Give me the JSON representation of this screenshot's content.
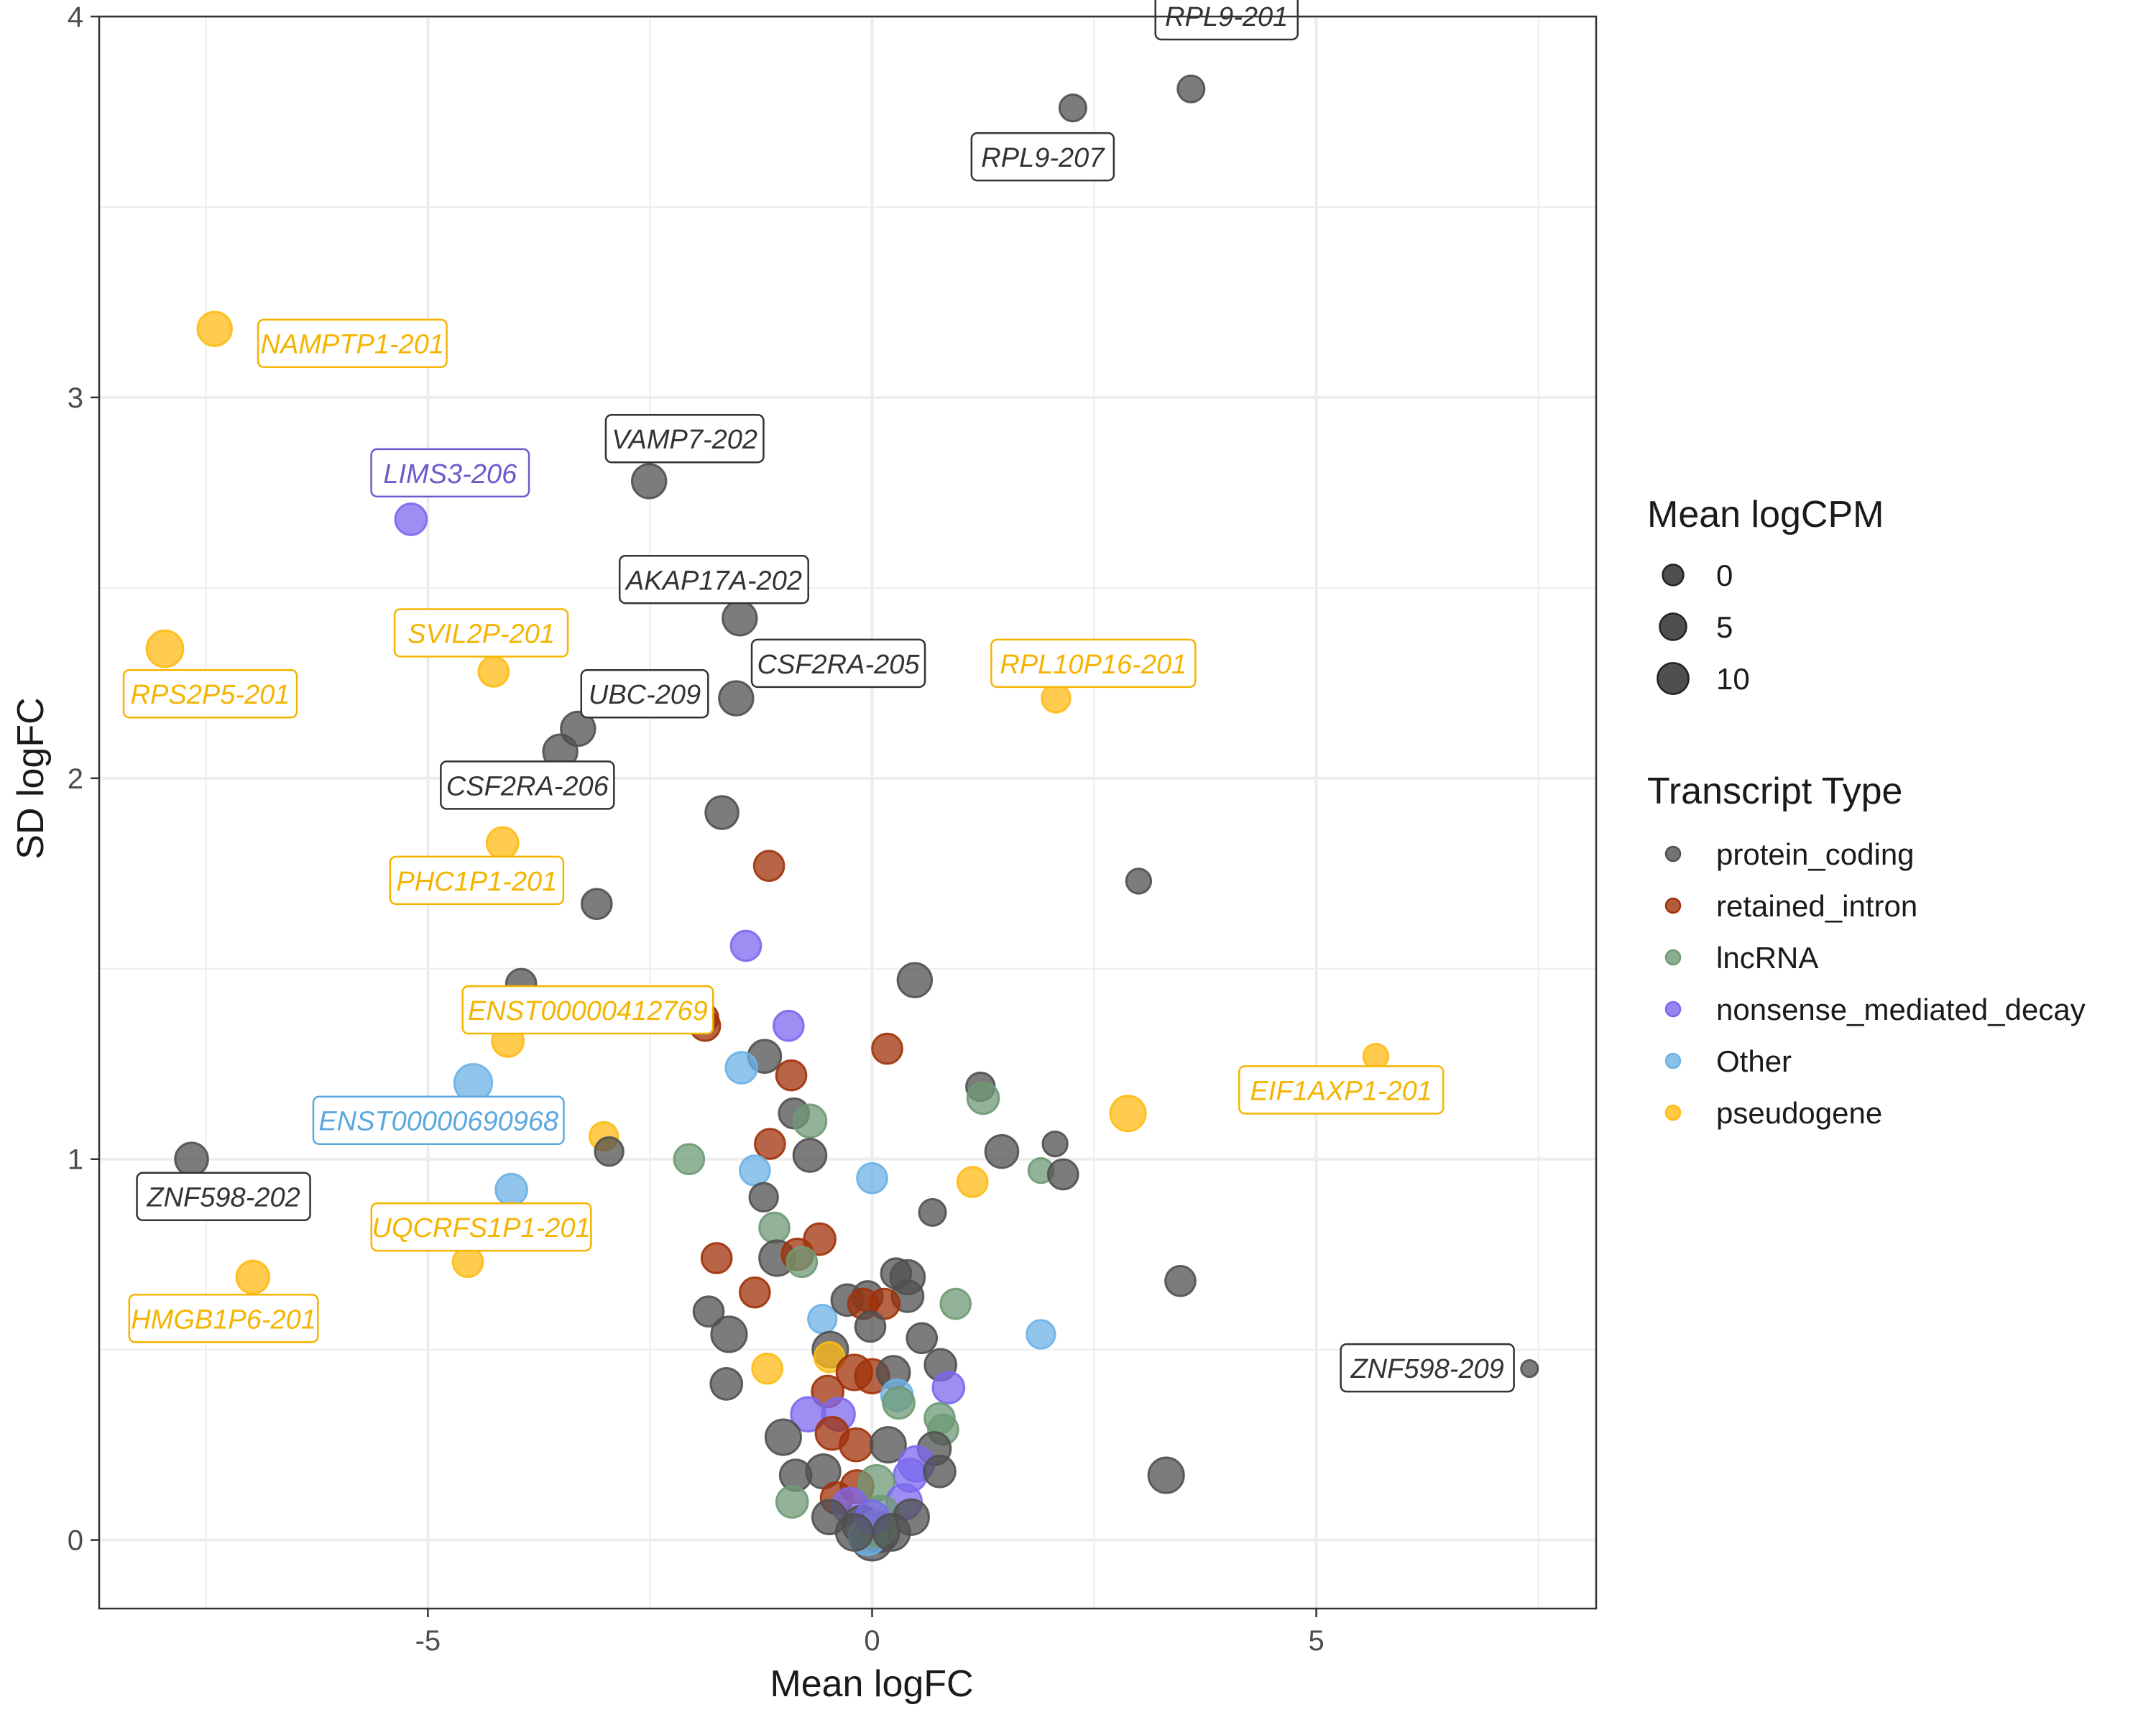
{
  "chart_data": {
    "type": "scatter",
    "title": "",
    "xlabel": "Mean logFC",
    "ylabel": "SD logFC",
    "xlim": [
      -8.7,
      8.15
    ],
    "ylim": [
      -0.18,
      4.0
    ],
    "x_ticks": [
      -5,
      0,
      5
    ],
    "x_tick_labels": [
      "-5",
      "0",
      "5"
    ],
    "y_ticks": [
      0,
      1,
      2,
      3,
      4
    ],
    "y_tick_labels": [
      "0",
      "1",
      "2",
      "3",
      "4"
    ],
    "grid": true,
    "legend_position": "right",
    "size_legend": {
      "title": "Mean logCPM",
      "entries": [
        {
          "label": "0",
          "value": 0
        },
        {
          "label": "5",
          "value": 5
        },
        {
          "label": "10",
          "value": 10
        }
      ]
    },
    "color_legend": {
      "title": "Transcript Type",
      "entries": [
        {
          "label": "protein_coding",
          "key": "protein_coding",
          "color": "#505050"
        },
        {
          "label": "retained_intron",
          "key": "retained_intron",
          "color": "#A0320A"
        },
        {
          "label": "lncRNA",
          "key": "lncRNA",
          "color": "#6E9A74"
        },
        {
          "label": "nonsense_mediated_decay",
          "key": "nonsense_mediated_decay",
          "color": "#7B68EE"
        },
        {
          "label": "Other",
          "key": "Other",
          "color": "#6DB1E6"
        },
        {
          "label": "pseudogene",
          "key": "pseudogene",
          "color": "#FFBB14"
        }
      ]
    },
    "label_colors": {
      "protein_coding": "#333333",
      "nonsense_mediated_decay": "#6A5ACD",
      "Other": "#5BA8DD",
      "pseudogene": "#F5B400"
    },
    "labeled_points": [
      {
        "label": "RPL9-201",
        "x": 3.59,
        "y": 3.81,
        "logCPM": 0,
        "type": "protein_coding",
        "lx": 3.99,
        "ly": 4.0
      },
      {
        "label": "RPL9-207",
        "x": 2.26,
        "y": 3.76,
        "logCPM": 0,
        "type": "protein_coding",
        "lx": 1.92,
        "ly": 3.63
      },
      {
        "label": "NAMPTP1-201",
        "x": -7.4,
        "y": 3.18,
        "logCPM": 5,
        "type": "pseudogene",
        "lx": -5.85,
        "ly": 3.14
      },
      {
        "label": "VAMP7-202",
        "x": -2.51,
        "y": 2.78,
        "logCPM": 5,
        "type": "protein_coding",
        "lx": -2.11,
        "ly": 2.89
      },
      {
        "label": "LIMS3-206",
        "x": -5.19,
        "y": 2.68,
        "logCPM": 3,
        "type": "nonsense_mediated_decay",
        "lx": -4.75,
        "ly": 2.8
      },
      {
        "label": "AKAP17A-202",
        "x": -1.49,
        "y": 2.42,
        "logCPM": 5,
        "type": "protein_coding",
        "lx": -1.78,
        "ly": 2.52
      },
      {
        "label": "RPS2P5-201",
        "x": -7.96,
        "y": 2.34,
        "logCPM": 7,
        "type": "pseudogene",
        "lx": -7.45,
        "ly": 2.22
      },
      {
        "label": "SVIL2P-201",
        "x": -4.26,
        "y": 2.28,
        "logCPM": 2,
        "type": "pseudogene",
        "lx": -4.4,
        "ly": 2.38
      },
      {
        "label": "CSF2RA-205",
        "x": -1.53,
        "y": 2.21,
        "logCPM": 5,
        "type": "protein_coding",
        "lx": -0.38,
        "ly": 2.3
      },
      {
        "label": "UBC-209",
        "x": -3.31,
        "y": 2.13,
        "logCPM": 5,
        "type": "protein_coding",
        "lx": -2.56,
        "ly": 2.22
      },
      {
        "label": "RPL10P16-201",
        "x": 2.07,
        "y": 2.21,
        "logCPM": 1,
        "type": "pseudogene",
        "lx": 2.49,
        "ly": 2.3
      },
      {
        "label": "CSF2RA-206",
        "x": -3.51,
        "y": 2.07,
        "logCPM": 5,
        "type": "protein_coding",
        "lx": -3.88,
        "ly": 1.98
      },
      {
        "label": "PHC1P1-201",
        "x": -4.16,
        "y": 1.83,
        "logCPM": 3,
        "type": "pseudogene",
        "lx": -4.45,
        "ly": 1.73
      },
      {
        "label": "ENST00000412769",
        "x": -4.1,
        "y": 1.31,
        "logCPM": 3,
        "type": "pseudogene",
        "lx": -3.2,
        "ly": 1.39
      },
      {
        "label": "EIF1AXP1-201",
        "x": 5.67,
        "y": 1.27,
        "logCPM": -1,
        "type": "pseudogene",
        "lx": 5.28,
        "ly": 1.18
      },
      {
        "label": "ENST00000690968",
        "x": -4.49,
        "y": 1.2,
        "logCPM": 8,
        "type": "Other",
        "lx": -4.88,
        "ly": 1.1
      },
      {
        "label": "ZNF598-202",
        "x": -7.66,
        "y": 1.0,
        "logCPM": 4,
        "type": "protein_coding",
        "lx": -7.3,
        "ly": 0.9
      },
      {
        "label": "UQCRFS1P1-201",
        "x": -4.55,
        "y": 0.73,
        "logCPM": 2,
        "type": "pseudogene",
        "lx": -4.4,
        "ly": 0.82
      },
      {
        "label": "HMGB1P6-201",
        "x": -6.97,
        "y": 0.69,
        "logCPM": 4,
        "type": "pseudogene",
        "lx": -7.3,
        "ly": 0.58
      },
      {
        "label": "ZNF598-209",
        "x": 7.4,
        "y": 0.45,
        "logCPM": -4,
        "type": "protein_coding",
        "lx": 6.25,
        "ly": 0.45
      }
    ],
    "points": [
      {
        "x": -1.69,
        "y": 1.91,
        "logCPM": 4,
        "type": "protein_coding"
      },
      {
        "x": -1.16,
        "y": 1.77,
        "logCPM": 2,
        "type": "retained_intron"
      },
      {
        "x": 3.0,
        "y": 1.73,
        "logCPM": -1,
        "type": "protein_coding"
      },
      {
        "x": -3.1,
        "y": 1.67,
        "logCPM": 2,
        "type": "protein_coding"
      },
      {
        "x": -1.42,
        "y": 1.56,
        "logCPM": 2,
        "type": "nonsense_mediated_decay"
      },
      {
        "x": 0.48,
        "y": 1.47,
        "logCPM": 5,
        "type": "protein_coding"
      },
      {
        "x": -3.95,
        "y": 1.46,
        "logCPM": 2,
        "type": "protein_coding"
      },
      {
        "x": -1.9,
        "y": 1.37,
        "logCPM": 2,
        "type": "retained_intron"
      },
      {
        "x": -1.88,
        "y": 1.35,
        "logCPM": 2,
        "type": "retained_intron"
      },
      {
        "x": -0.94,
        "y": 1.35,
        "logCPM": 2,
        "type": "nonsense_mediated_decay"
      },
      {
        "x": 0.17,
        "y": 1.29,
        "logCPM": 2,
        "type": "retained_intron"
      },
      {
        "x": -1.21,
        "y": 1.27,
        "logCPM": 4,
        "type": "protein_coding"
      },
      {
        "x": -1.47,
        "y": 1.24,
        "logCPM": 3,
        "type": "Other"
      },
      {
        "x": -0.91,
        "y": 1.22,
        "logCPM": 2,
        "type": "retained_intron"
      },
      {
        "x": 1.22,
        "y": 1.19,
        "logCPM": 1,
        "type": "protein_coding"
      },
      {
        "x": 1.25,
        "y": 1.16,
        "logCPM": 3,
        "type": "lncRNA"
      },
      {
        "x": 2.88,
        "y": 1.12,
        "logCPM": 6,
        "type": "pseudogene"
      },
      {
        "x": -0.88,
        "y": 1.12,
        "logCPM": 2,
        "type": "protein_coding"
      },
      {
        "x": -0.7,
        "y": 1.1,
        "logCPM": 4,
        "type": "lncRNA"
      },
      {
        "x": -3.02,
        "y": 1.06,
        "logCPM": 1,
        "type": "pseudogene"
      },
      {
        "x": -2.96,
        "y": 1.02,
        "logCPM": 1,
        "type": "protein_coding"
      },
      {
        "x": -1.15,
        "y": 1.04,
        "logCPM": 2,
        "type": "retained_intron"
      },
      {
        "x": -0.7,
        "y": 1.01,
        "logCPM": 4,
        "type": "protein_coding"
      },
      {
        "x": -2.06,
        "y": 1.0,
        "logCPM": 2,
        "type": "lncRNA"
      },
      {
        "x": 1.46,
        "y": 1.02,
        "logCPM": 4,
        "type": "protein_coding"
      },
      {
        "x": 2.06,
        "y": 1.04,
        "logCPM": -1,
        "type": "protein_coding"
      },
      {
        "x": 1.9,
        "y": 0.97,
        "logCPM": -1,
        "type": "lncRNA"
      },
      {
        "x": 2.15,
        "y": 0.96,
        "logCPM": 2,
        "type": "protein_coding"
      },
      {
        "x": -1.32,
        "y": 0.97,
        "logCPM": 2,
        "type": "Other"
      },
      {
        "x": 0.0,
        "y": 0.95,
        "logCPM": 2,
        "type": "Other"
      },
      {
        "x": 1.13,
        "y": 0.94,
        "logCPM": 2,
        "type": "pseudogene"
      },
      {
        "x": -4.06,
        "y": 0.92,
        "logCPM": 3,
        "type": "Other"
      },
      {
        "x": -1.22,
        "y": 0.9,
        "logCPM": 1,
        "type": "protein_coding"
      },
      {
        "x": 0.68,
        "y": 0.86,
        "logCPM": 0,
        "type": "protein_coding"
      },
      {
        "x": -1.1,
        "y": 0.82,
        "logCPM": 2,
        "type": "lncRNA"
      },
      {
        "x": -1.75,
        "y": 0.74,
        "logCPM": 2,
        "type": "retained_intron"
      },
      {
        "x": -1.07,
        "y": 0.74,
        "logCPM": 6,
        "type": "protein_coding"
      },
      {
        "x": -0.84,
        "y": 0.75,
        "logCPM": 3,
        "type": "retained_intron"
      },
      {
        "x": -0.59,
        "y": 0.79,
        "logCPM": 3,
        "type": "retained_intron"
      },
      {
        "x": -0.79,
        "y": 0.73,
        "logCPM": 2,
        "type": "lncRNA"
      },
      {
        "x": 3.47,
        "y": 0.68,
        "logCPM": 2,
        "type": "protein_coding"
      },
      {
        "x": -1.32,
        "y": 0.65,
        "logCPM": 2,
        "type": "retained_intron"
      },
      {
        "x": -1.84,
        "y": 0.6,
        "logCPM": 2,
        "type": "protein_coding"
      },
      {
        "x": -1.61,
        "y": 0.54,
        "logCPM": 6,
        "type": "protein_coding"
      },
      {
        "x": -0.56,
        "y": 0.58,
        "logCPM": 1,
        "type": "Other"
      },
      {
        "x": 0.94,
        "y": 0.62,
        "logCPM": 2,
        "type": "lncRNA"
      },
      {
        "x": 1.9,
        "y": 0.54,
        "logCPM": 1,
        "type": "Other"
      },
      {
        "x": -1.18,
        "y": 0.45,
        "logCPM": 2,
        "type": "pseudogene"
      },
      {
        "x": -1.64,
        "y": 0.41,
        "logCPM": 3,
        "type": "protein_coding"
      },
      {
        "x": 3.31,
        "y": 0.17,
        "logCPM": 6,
        "type": "protein_coding"
      },
      {
        "x": -0.28,
        "y": 0.63,
        "logCPM": 3,
        "type": "protein_coding"
      },
      {
        "x": -0.05,
        "y": 0.64,
        "logCPM": 2,
        "type": "protein_coding"
      },
      {
        "x": 0.27,
        "y": 0.7,
        "logCPM": 2,
        "type": "protein_coding"
      },
      {
        "x": 0.4,
        "y": 0.69,
        "logCPM": 5,
        "type": "protein_coding"
      },
      {
        "x": 0.4,
        "y": 0.64,
        "logCPM": 3,
        "type": "protein_coding"
      },
      {
        "x": 0.14,
        "y": 0.62,
        "logCPM": 2,
        "type": "retained_intron"
      },
      {
        "x": -0.1,
        "y": 0.62,
        "logCPM": 2,
        "type": "retained_intron"
      },
      {
        "x": -0.02,
        "y": 0.56,
        "logCPM": 2,
        "type": "protein_coding"
      },
      {
        "x": 0.56,
        "y": 0.53,
        "logCPM": 2,
        "type": "protein_coding"
      },
      {
        "x": -0.47,
        "y": 0.5,
        "logCPM": 6,
        "type": "protein_coding"
      },
      {
        "x": -0.48,
        "y": 0.48,
        "logCPM": 2,
        "type": "pseudogene"
      },
      {
        "x": 0.77,
        "y": 0.46,
        "logCPM": 3,
        "type": "protein_coding"
      },
      {
        "x": -0.2,
        "y": 0.44,
        "logCPM": 6,
        "type": "retained_intron"
      },
      {
        "x": 0.0,
        "y": 0.43,
        "logCPM": 5,
        "type": "retained_intron"
      },
      {
        "x": 0.24,
        "y": 0.44,
        "logCPM": 4,
        "type": "protein_coding"
      },
      {
        "x": 0.86,
        "y": 0.4,
        "logCPM": 3,
        "type": "nonsense_mediated_decay"
      },
      {
        "x": -0.5,
        "y": 0.39,
        "logCPM": 3,
        "type": "retained_intron"
      },
      {
        "x": 0.28,
        "y": 0.38,
        "logCPM": 3,
        "type": "Other"
      },
      {
        "x": 0.3,
        "y": 0.36,
        "logCPM": 3,
        "type": "lncRNA"
      },
      {
        "x": -0.72,
        "y": 0.33,
        "logCPM": 5,
        "type": "nonsense_mediated_decay"
      },
      {
        "x": -0.38,
        "y": 0.33,
        "logCPM": 4,
        "type": "nonsense_mediated_decay"
      },
      {
        "x": 0.76,
        "y": 0.32,
        "logCPM": 2,
        "type": "lncRNA"
      },
      {
        "x": 0.8,
        "y": 0.29,
        "logCPM": 2,
        "type": "lncRNA"
      },
      {
        "x": -1.0,
        "y": 0.27,
        "logCPM": 6,
        "type": "protein_coding"
      },
      {
        "x": -0.45,
        "y": 0.28,
        "logCPM": 4,
        "type": "retained_intron"
      },
      {
        "x": -0.18,
        "y": 0.25,
        "logCPM": 4,
        "type": "retained_intron"
      },
      {
        "x": 0.18,
        "y": 0.25,
        "logCPM": 6,
        "type": "protein_coding"
      },
      {
        "x": 0.7,
        "y": 0.24,
        "logCPM": 4,
        "type": "protein_coding"
      },
      {
        "x": 0.5,
        "y": 0.2,
        "logCPM": 6,
        "type": "nonsense_mediated_decay"
      },
      {
        "x": 0.43,
        "y": 0.17,
        "logCPM": 4,
        "type": "nonsense_mediated_decay"
      },
      {
        "x": -0.86,
        "y": 0.17,
        "logCPM": 3,
        "type": "protein_coding"
      },
      {
        "x": 0.76,
        "y": 0.18,
        "logCPM": 3,
        "type": "protein_coding"
      },
      {
        "x": -0.55,
        "y": 0.18,
        "logCPM": 5,
        "type": "protein_coding"
      },
      {
        "x": -0.17,
        "y": 0.14,
        "logCPM": 4,
        "type": "retained_intron"
      },
      {
        "x": 0.05,
        "y": 0.15,
        "logCPM": 6,
        "type": "lncRNA"
      },
      {
        "x": -0.9,
        "y": 0.1,
        "logCPM": 3,
        "type": "lncRNA"
      },
      {
        "x": -0.4,
        "y": 0.11,
        "logCPM": 3,
        "type": "retained_intron"
      },
      {
        "x": 0.36,
        "y": 0.1,
        "logCPM": 6,
        "type": "nonsense_mediated_decay"
      },
      {
        "x": -0.25,
        "y": 0.09,
        "logCPM": 6,
        "type": "nonsense_mediated_decay"
      },
      {
        "x": 0.1,
        "y": 0.07,
        "logCPM": 6,
        "type": "lncRNA"
      },
      {
        "x": -0.48,
        "y": 0.06,
        "logCPM": 5,
        "type": "protein_coding"
      },
      {
        "x": 0.44,
        "y": 0.06,
        "logCPM": 6,
        "type": "protein_coding"
      },
      {
        "x": -0.12,
        "y": 0.04,
        "logCPM": 8,
        "type": "protein_coding"
      },
      {
        "x": 0.08,
        "y": 0.02,
        "logCPM": 10,
        "type": "protein_coding"
      },
      {
        "x": 0.0,
        "y": 0.0,
        "logCPM": 11,
        "type": "protein_coding"
      },
      {
        "x": -0.05,
        "y": 0.01,
        "logCPM": 8,
        "type": "Other"
      },
      {
        "x": 0.06,
        "y": 0.03,
        "logCPM": 7,
        "type": "lncRNA"
      },
      {
        "x": 0.0,
        "y": 0.06,
        "logCPM": 4,
        "type": "nonsense_mediated_decay"
      },
      {
        "x": -0.2,
        "y": 0.02,
        "logCPM": 7,
        "type": "protein_coding"
      },
      {
        "x": 0.22,
        "y": 0.02,
        "logCPM": 7,
        "type": "protein_coding"
      }
    ]
  }
}
